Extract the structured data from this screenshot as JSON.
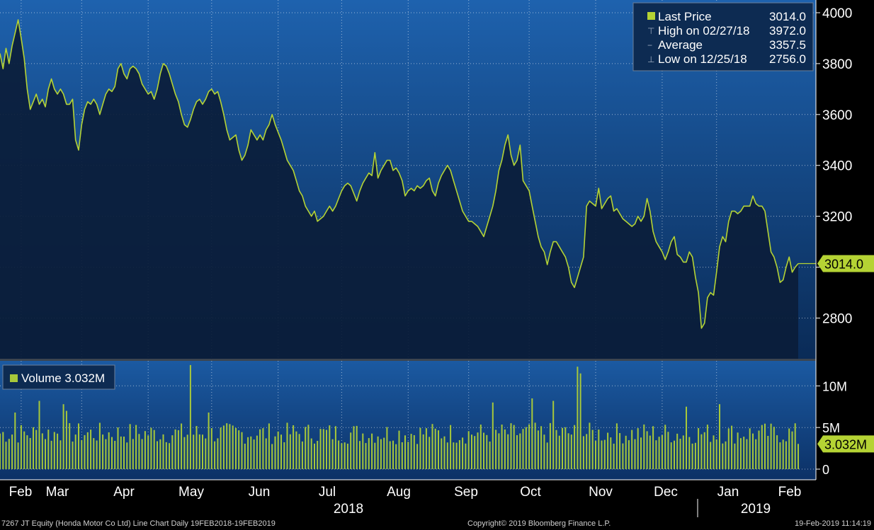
{
  "chart_data": {
    "type": "line",
    "price_panel": {
      "yticks": [
        2800,
        3000,
        3200,
        3400,
        3600,
        3800,
        4000
      ],
      "ytick_labels": [
        "2800",
        "",
        "3200",
        "3400",
        "3600",
        "3800",
        "4000"
      ],
      "ylim": [
        2640,
        4050
      ],
      "last_value_label": "3014.0",
      "series": {
        "name": "Last Price",
        "start_date": "2018-02-19",
        "values": [
          3840,
          3780,
          3860,
          3800,
          3870,
          3920,
          3972,
          3900,
          3820,
          3700,
          3620,
          3650,
          3680,
          3640,
          3660,
          3630,
          3700,
          3740,
          3700,
          3680,
          3700,
          3680,
          3640,
          3640,
          3660,
          3500,
          3460,
          3560,
          3620,
          3650,
          3640,
          3660,
          3640,
          3600,
          3640,
          3680,
          3700,
          3690,
          3710,
          3780,
          3800,
          3760,
          3740,
          3780,
          3790,
          3780,
          3760,
          3720,
          3700,
          3680,
          3690,
          3660,
          3700,
          3760,
          3800,
          3790,
          3760,
          3720,
          3680,
          3650,
          3600,
          3560,
          3550,
          3580,
          3620,
          3650,
          3660,
          3640,
          3660,
          3690,
          3700,
          3680,
          3690,
          3650,
          3600,
          3540,
          3500,
          3510,
          3520,
          3460,
          3420,
          3440,
          3480,
          3540,
          3520,
          3500,
          3520,
          3500,
          3540,
          3560,
          3600,
          3560,
          3530,
          3500,
          3460,
          3420,
          3400,
          3380,
          3340,
          3300,
          3280,
          3240,
          3220,
          3200,
          3220,
          3180,
          3190,
          3200,
          3220,
          3240,
          3220,
          3240,
          3270,
          3300,
          3320,
          3330,
          3320,
          3290,
          3260,
          3300,
          3330,
          3350,
          3370,
          3360,
          3450,
          3350,
          3380,
          3400,
          3420,
          3420,
          3380,
          3390,
          3370,
          3340,
          3280,
          3300,
          3310,
          3300,
          3320,
          3310,
          3320,
          3340,
          3350,
          3300,
          3280,
          3330,
          3360,
          3380,
          3400,
          3380,
          3340,
          3300,
          3260,
          3220,
          3200,
          3180,
          3180,
          3170,
          3160,
          3140,
          3120,
          3160,
          3200,
          3240,
          3300,
          3380,
          3420,
          3480,
          3520,
          3440,
          3400,
          3420,
          3480,
          3340,
          3320,
          3300,
          3240,
          3180,
          3120,
          3080,
          3060,
          3010,
          3060,
          3100,
          3100,
          3080,
          3060,
          3040,
          3000,
          2940,
          2920,
          2960,
          3000,
          3040,
          3240,
          3260,
          3250,
          3240,
          3310,
          3230,
          3250,
          3270,
          3280,
          3220,
          3230,
          3210,
          3190,
          3180,
          3170,
          3160,
          3170,
          3200,
          3180,
          3200,
          3270,
          3220,
          3140,
          3100,
          3080,
          3060,
          3030,
          3060,
          3100,
          3120,
          3050,
          3040,
          3020,
          3020,
          3060,
          3040,
          2960,
          2900,
          2760,
          2780,
          2880,
          2900,
          2890,
          2980,
          3080,
          3120,
          3100,
          3180,
          3220,
          3220,
          3210,
          3220,
          3240,
          3240,
          3240,
          3280,
          3250,
          3240,
          3240,
          3220,
          3140,
          3060,
          3040,
          3000,
          2940,
          2950,
          3000,
          3040,
          2980,
          3000,
          3014
        ]
      },
      "legend": [
        {
          "label": "Last Price",
          "value": "3014.0"
        },
        {
          "label": "High on 02/27/18",
          "value": "3972.0"
        },
        {
          "label": "Average",
          "value": "3357.5"
        },
        {
          "label": "Low on 12/25/18",
          "value": "2756.0"
        }
      ],
      "legend_position": "top-right"
    },
    "volume_panel": {
      "legend_label": "Volume 3.032M",
      "yticks": [
        0,
        5000000,
        10000000
      ],
      "ytick_labels": [
        "0",
        "5M",
        "10M"
      ],
      "ylim": [
        0,
        13000000
      ],
      "last_value_label": "3.032M"
    },
    "x_axis": {
      "month_labels": [
        "Feb",
        "Mar",
        "Apr",
        "May",
        "Jun",
        "Jul",
        "Aug",
        "Sep",
        "Oct",
        "Nov",
        "Dec",
        "Jan",
        "Feb"
      ],
      "year_labels": [
        "2018",
        "2019"
      ]
    },
    "grid": true
  },
  "footer": {
    "left": "7267 JT Equity (Honda Motor Co Ltd) Line Chart   Daily 19FEB2018-19FEB2019",
    "center": "Copyright© 2019 Bloomberg Finance L.P.",
    "right": "19-Feb-2019 11:14:19"
  },
  "colors": {
    "line": "#b5d334",
    "bar": "#a7c83a",
    "bg_top": "#1c5da6",
    "bg_bottom": "#0b2f5e",
    "area": "#0b1d3a",
    "axis_text": "#ffffff"
  }
}
